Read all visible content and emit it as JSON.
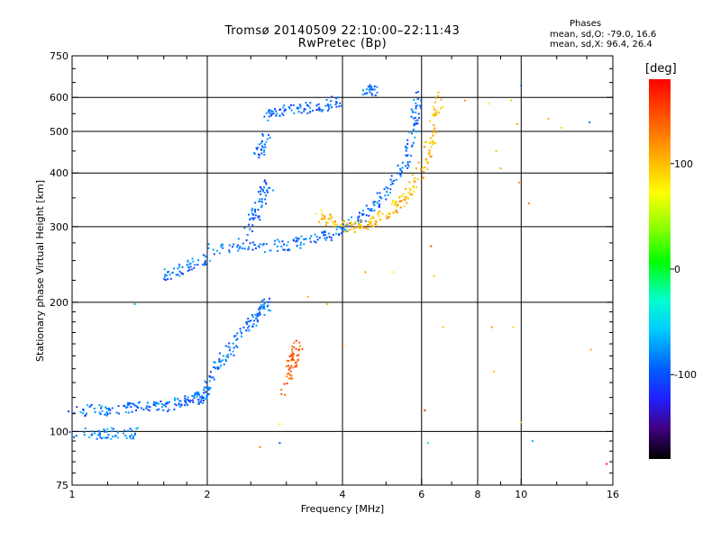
{
  "chart_data": {
    "type": "scatter",
    "title": "Tromsø 20140509 22:10:00–22:11:43",
    "subtitle": "RwPretec (Bp)",
    "xlabel": "Frequency [MHz]",
    "ylabel": "Stationary phase Virtual Height [km]",
    "x_scale": "log",
    "y_scale": "log",
    "xlim": [
      1,
      16
    ],
    "ylim": [
      75,
      750
    ],
    "x_ticks": [
      1,
      2,
      4,
      6,
      8,
      10,
      16
    ],
    "x_tick_labels": [
      "1",
      "2",
      "4",
      "6",
      "8",
      "10",
      "16"
    ],
    "y_ticks": [
      75,
      100,
      200,
      300,
      400,
      500,
      600,
      750
    ],
    "y_tick_labels": [
      "75",
      "100",
      "200",
      "300",
      "400",
      "500",
      "600",
      "750"
    ],
    "x_gridlines": [
      2,
      4,
      6,
      8,
      10
    ],
    "y_gridlines": [
      100,
      200,
      300,
      400,
      500,
      600
    ],
    "grid": true,
    "stats": {
      "heading": "Phases",
      "o_line": "mean, sd,O: -79.0, 16.6",
      "x_line": "mean, sd,X:  96.4, 26.4"
    },
    "colorbar": {
      "unit": "[deg]",
      "range": [
        -180,
        180
      ],
      "ticks": [
        100,
        0,
        -100
      ],
      "tick_labels": [
        "100",
        "0",
        "-100"
      ]
    },
    "series": [
      {
        "note_type": "o-mode",
        "phase": -90,
        "traces": [
          {
            "x": [
              1.0,
              1.2,
              1.4
            ],
            "y": [
              99,
              99,
              99
            ],
            "phase": -80
          },
          {
            "x": [
              1.0,
              1.2,
              1.4,
              1.6,
              1.8,
              1.95,
              2.0
            ],
            "y": [
              112,
              112,
              114,
              114,
              118,
              120,
              125
            ]
          },
          {
            "x": [
              2.0,
              2.2,
              2.4,
              2.6,
              2.75
            ],
            "y": [
              130,
              150,
              170,
              190,
              200
            ]
          },
          {
            "x": [
              1.6,
              1.8,
              2.0
            ],
            "y": [
              230,
              240,
              255
            ]
          },
          {
            "x": [
              2.0,
              2.5,
              3.0,
              3.5,
              4.0,
              4.5,
              5.0,
              5.5,
              5.8,
              5.9
            ],
            "y": [
              265,
              268,
              272,
              280,
              295,
              320,
              360,
              420,
              520,
              640
            ]
          },
          {
            "x": [
              2.4,
              2.6,
              2.75
            ],
            "y": [
              280,
              330,
              380
            ]
          },
          {
            "x": [
              2.6,
              2.7
            ],
            "y": [
              440,
              490
            ]
          },
          {
            "x": [
              2.7,
              3.0,
              3.5,
              4.0
            ],
            "y": [
              545,
              560,
              570,
              590
            ]
          },
          {
            "x": [
              4.5,
              4.7
            ],
            "y": [
              620,
              625
            ]
          }
        ]
      },
      {
        "note_type": "x-mode",
        "phase": 100,
        "traces": [
          {
            "x": [
              2.95,
              3.1,
              3.2
            ],
            "y": [
              125,
              145,
              160
            ],
            "phase": 140
          },
          {
            "x": [
              3.5,
              4.0,
              4.5,
              5.0,
              5.5,
              6.0,
              6.3,
              6.6
            ],
            "y": [
              320,
              300,
              300,
              320,
              350,
              400,
              480,
              610
            ]
          }
        ]
      },
      {
        "note_type": "scattered",
        "points": [
          {
            "x": 1.38,
            "y": 198,
            "phase": -60
          },
          {
            "x": 2.62,
            "y": 92,
            "phase": 130
          },
          {
            "x": 2.9,
            "y": 104,
            "phase": 60
          },
          {
            "x": 3.35,
            "y": 206,
            "phase": 110
          },
          {
            "x": 3.7,
            "y": 198,
            "phase": 100
          },
          {
            "x": 4.0,
            "y": 158,
            "phase": 140
          },
          {
            "x": 4.5,
            "y": 235,
            "phase": 120
          },
          {
            "x": 5.2,
            "y": 235,
            "phase": 70
          },
          {
            "x": 6.1,
            "y": 112,
            "phase": 160
          },
          {
            "x": 6.2,
            "y": 94,
            "phase": -10
          },
          {
            "x": 6.4,
            "y": 230,
            "phase": 90
          },
          {
            "x": 6.3,
            "y": 270,
            "phase": 150
          },
          {
            "x": 7.5,
            "y": 590,
            "phase": 120
          },
          {
            "x": 8.5,
            "y": 580,
            "phase": 80
          },
          {
            "x": 8.8,
            "y": 450,
            "phase": 100
          },
          {
            "x": 8.6,
            "y": 175,
            "phase": 120
          },
          {
            "x": 8.7,
            "y": 138,
            "phase": 100
          },
          {
            "x": 9.0,
            "y": 410,
            "phase": 110
          },
          {
            "x": 9.5,
            "y": 590,
            "phase": 40
          },
          {
            "x": 9.6,
            "y": 175,
            "phase": 90
          },
          {
            "x": 9.8,
            "y": 520,
            "phase": 110
          },
          {
            "x": 9.9,
            "y": 380,
            "phase": 120
          },
          {
            "x": 10.0,
            "y": 105,
            "phase": 40
          },
          {
            "x": 10.0,
            "y": 640,
            "phase": -100
          },
          {
            "x": 10.6,
            "y": 95,
            "phase": -60
          },
          {
            "x": 10.4,
            "y": 340,
            "phase": 130
          },
          {
            "x": 11.5,
            "y": 535,
            "phase": 100
          },
          {
            "x": 12.3,
            "y": 510,
            "phase": 90
          },
          {
            "x": 14.2,
            "y": 525,
            "phase": -90
          },
          {
            "x": 14.3,
            "y": 155,
            "phase": 110
          },
          {
            "x": 15.5,
            "y": 84,
            "phase": 170
          },
          {
            "x": 2.9,
            "y": 94,
            "phase": -100
          },
          {
            "x": 6.7,
            "y": 175,
            "phase": 100
          }
        ]
      }
    ]
  }
}
